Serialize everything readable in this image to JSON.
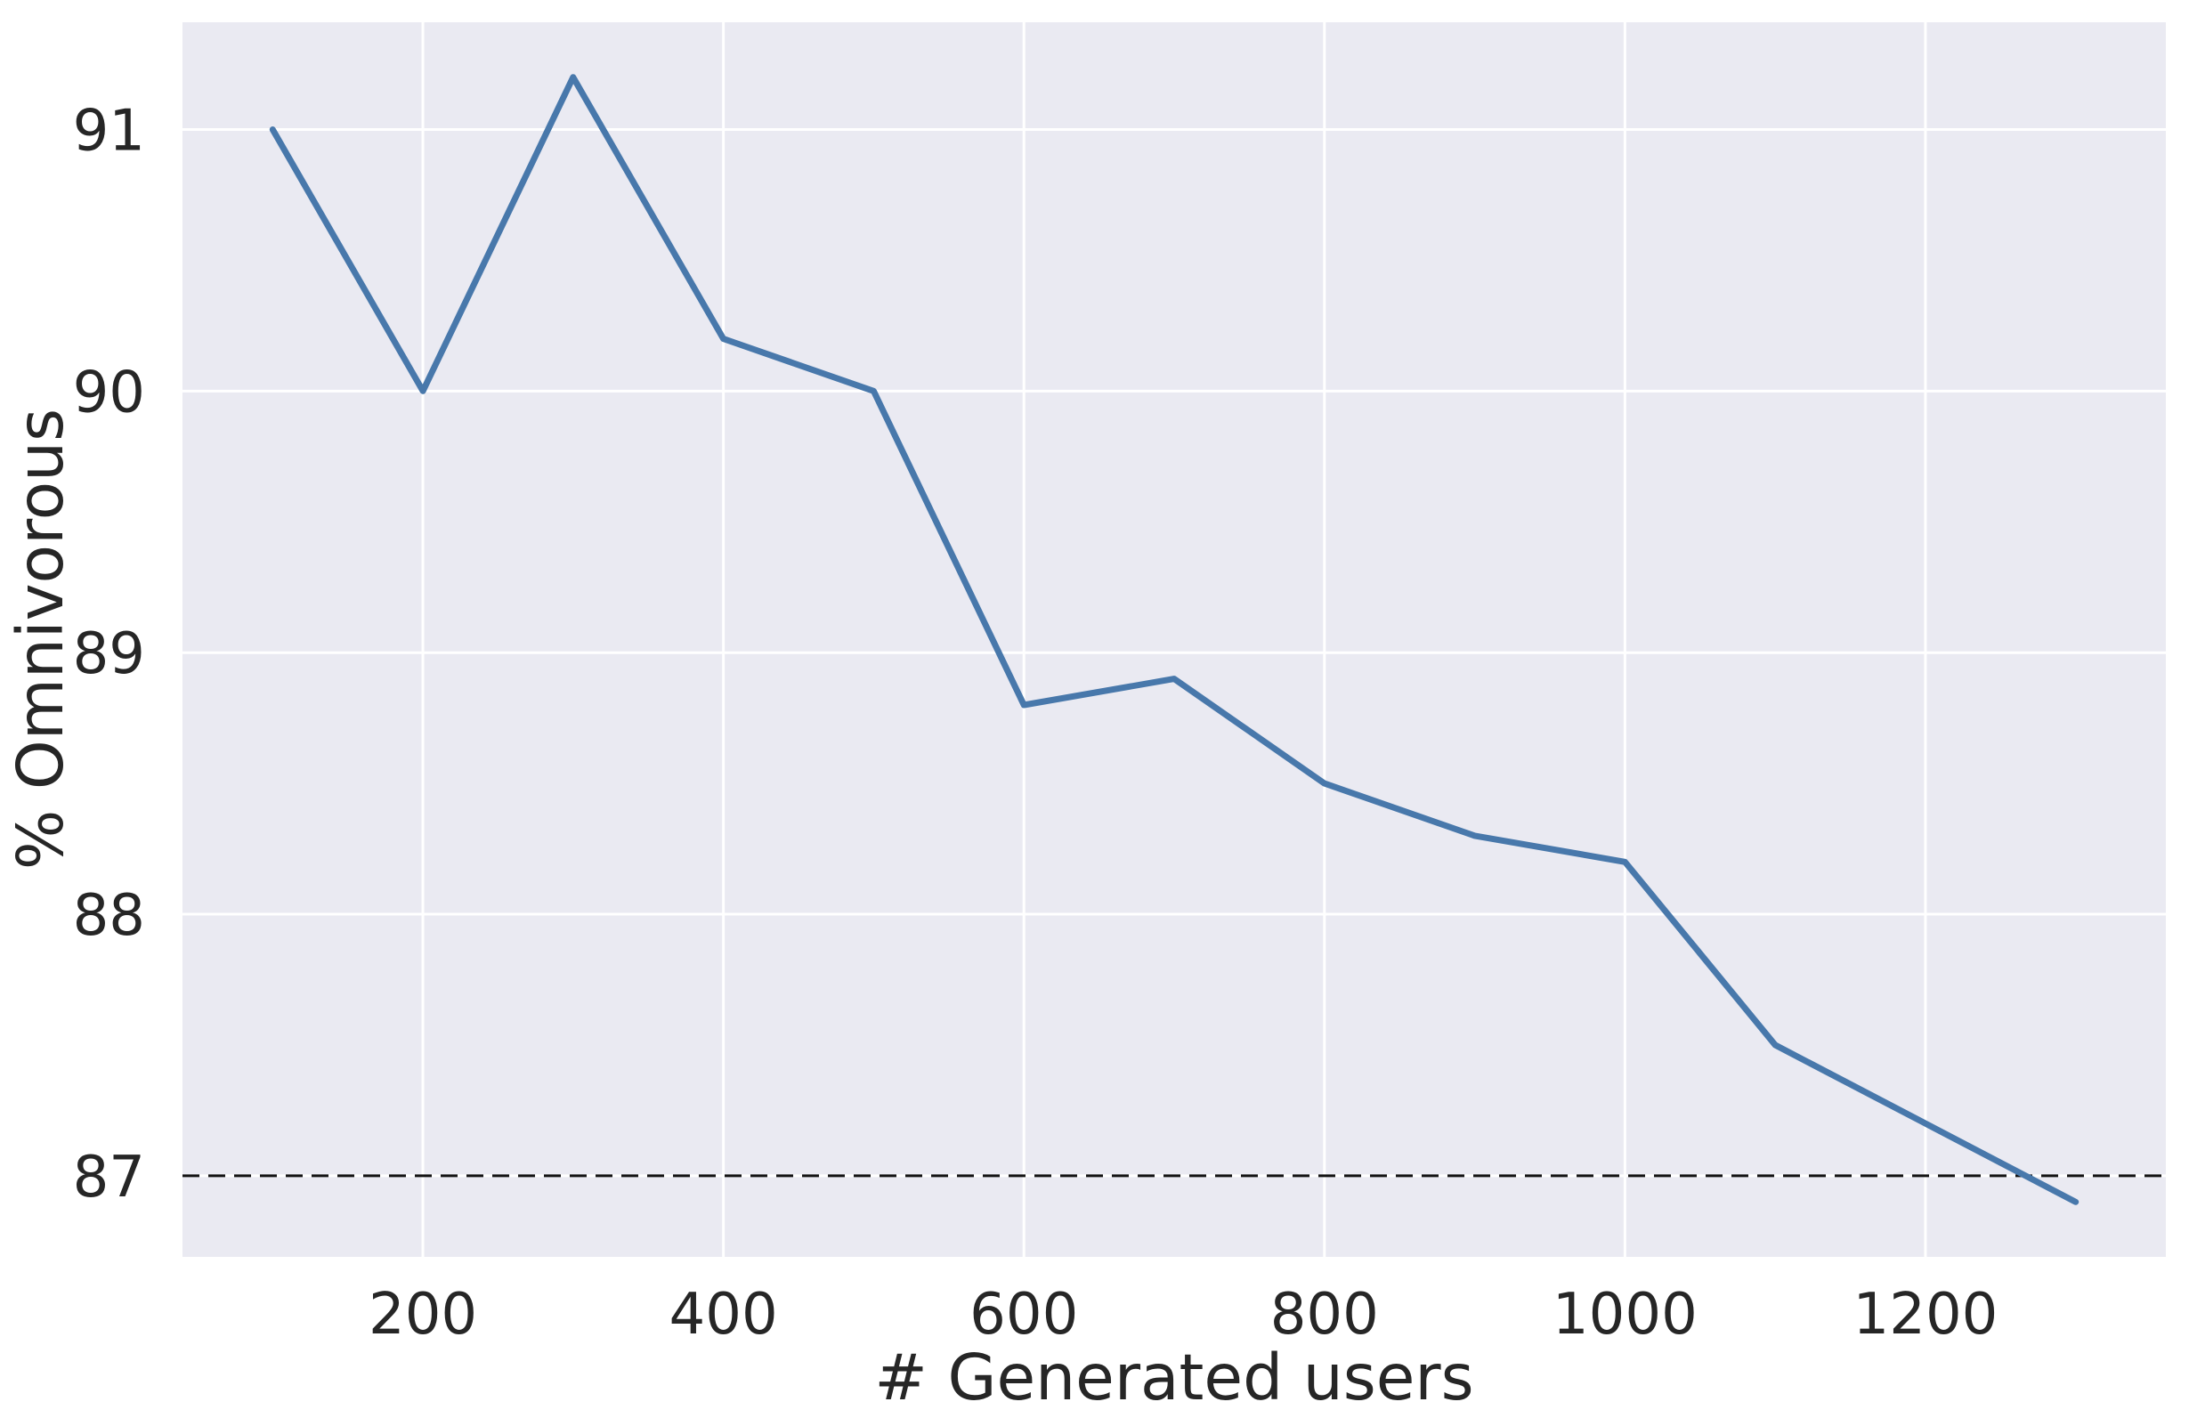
{
  "chart_data": {
    "type": "line",
    "title": "",
    "xlabel": "# Generated users",
    "ylabel": "% Omnivorous",
    "x": [
      100,
      200,
      300,
      400,
      500,
      600,
      700,
      800,
      900,
      1000,
      1100,
      1300
    ],
    "series": [
      {
        "name": "% Omnivorous",
        "values": [
          91.0,
          90.0,
          91.2,
          90.2,
          90.0,
          88.8,
          88.9,
          88.5,
          88.3,
          88.2,
          87.5,
          86.9
        ]
      }
    ],
    "reference_line": {
      "y": 87,
      "style": "dashed",
      "color": "#111111"
    },
    "x_ticks": [
      200,
      400,
      600,
      800,
      1000,
      1200
    ],
    "y_ticks": [
      87,
      88,
      89,
      90,
      91
    ],
    "xlim": [
      40,
      1360
    ],
    "ylim": [
      86.69,
      91.41
    ],
    "grid": true,
    "legend": "none",
    "colors": {
      "line": "#4878ab",
      "plot_background": "#eaeaf2",
      "gridline": "#ffffff",
      "figure_background": "#ffffff",
      "text": "#262626"
    }
  }
}
